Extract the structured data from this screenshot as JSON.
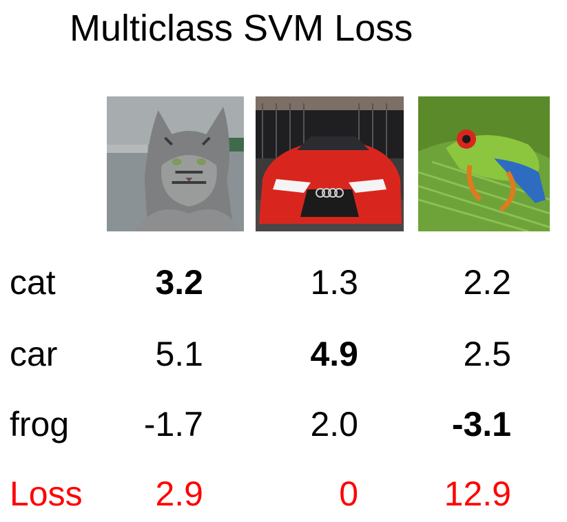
{
  "title": "Multiclass SVM Loss",
  "images": [
    {
      "icon": "cat-photo"
    },
    {
      "icon": "red-car-photo"
    },
    {
      "icon": "tree-frog-photo"
    }
  ],
  "rows": [
    {
      "label": "cat",
      "values": [
        "3.2",
        "1.3",
        "2.2"
      ]
    },
    {
      "label": "car",
      "values": [
        "5.1",
        "4.9",
        "2.5"
      ]
    },
    {
      "label": "frog",
      "values": [
        "-1.7",
        "2.0",
        "-3.1"
      ]
    }
  ],
  "loss": {
    "label": "Loss",
    "values": [
      "2.9",
      "0",
      "12.9"
    ]
  },
  "colors": {
    "loss": "#ff0000",
    "text": "#000000"
  }
}
